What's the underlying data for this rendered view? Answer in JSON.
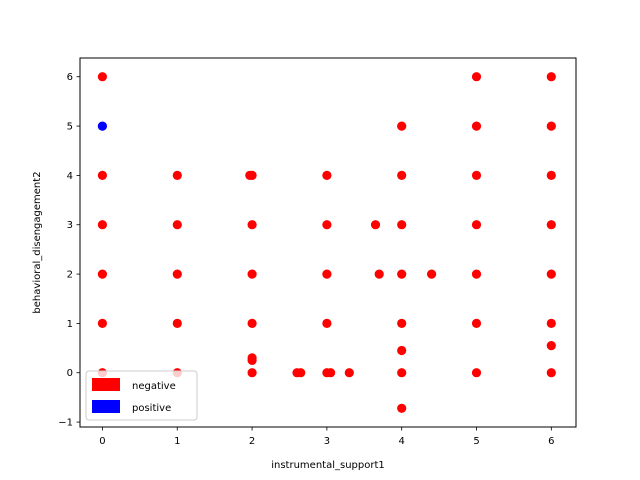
{
  "chart_data": {
    "type": "scatter",
    "xlabel": "instrumental_support1",
    "ylabel": "behavioral_disengagement2",
    "xlim": [
      -0.3,
      6.33
    ],
    "ylim": [
      -1.1,
      6.38
    ],
    "xticks": [
      "0",
      "1",
      "2",
      "3",
      "4",
      "5",
      "6"
    ],
    "yticks": [
      "−1",
      "0",
      "1",
      "2",
      "3",
      "4",
      "5",
      "6"
    ],
    "grid": false,
    "legend_placement": "lower-left",
    "series": [
      {
        "name": "negative",
        "color": "#ff0000",
        "points": [
          [
            0,
            6
          ],
          [
            0,
            4
          ],
          [
            0,
            3
          ],
          [
            0,
            2
          ],
          [
            0,
            1
          ],
          [
            0,
            0
          ],
          [
            1,
            4
          ],
          [
            1,
            3
          ],
          [
            1,
            2
          ],
          [
            1,
            1
          ],
          [
            1,
            0
          ],
          [
            1.97,
            4
          ],
          [
            2,
            4
          ],
          [
            2,
            3
          ],
          [
            2,
            2
          ],
          [
            2,
            1
          ],
          [
            2,
            0.3
          ],
          [
            2,
            0.25
          ],
          [
            2,
            0
          ],
          [
            2.6,
            0
          ],
          [
            2.65,
            0
          ],
          [
            3,
            4
          ],
          [
            3,
            3
          ],
          [
            3,
            2
          ],
          [
            3,
            1
          ],
          [
            3,
            0
          ],
          [
            3.05,
            0
          ],
          [
            3.3,
            0
          ],
          [
            3.65,
            3
          ],
          [
            3.7,
            2
          ],
          [
            4,
            5
          ],
          [
            4,
            4
          ],
          [
            4,
            3
          ],
          [
            4,
            2
          ],
          [
            4,
            1
          ],
          [
            4,
            0.45
          ],
          [
            4,
            0
          ],
          [
            4,
            -0.72
          ],
          [
            4.4,
            2
          ],
          [
            5,
            6
          ],
          [
            5,
            5
          ],
          [
            5,
            4
          ],
          [
            5,
            3
          ],
          [
            5,
            2
          ],
          [
            5,
            1
          ],
          [
            5,
            0
          ],
          [
            6,
            6
          ],
          [
            6,
            5
          ],
          [
            6,
            4
          ],
          [
            6,
            3
          ],
          [
            6,
            2
          ],
          [
            6,
            1
          ],
          [
            6,
            0.55
          ],
          [
            6,
            0
          ]
        ]
      },
      {
        "name": "positive",
        "color": "#0000ff",
        "points": [
          [
            0,
            5
          ]
        ]
      }
    ]
  }
}
